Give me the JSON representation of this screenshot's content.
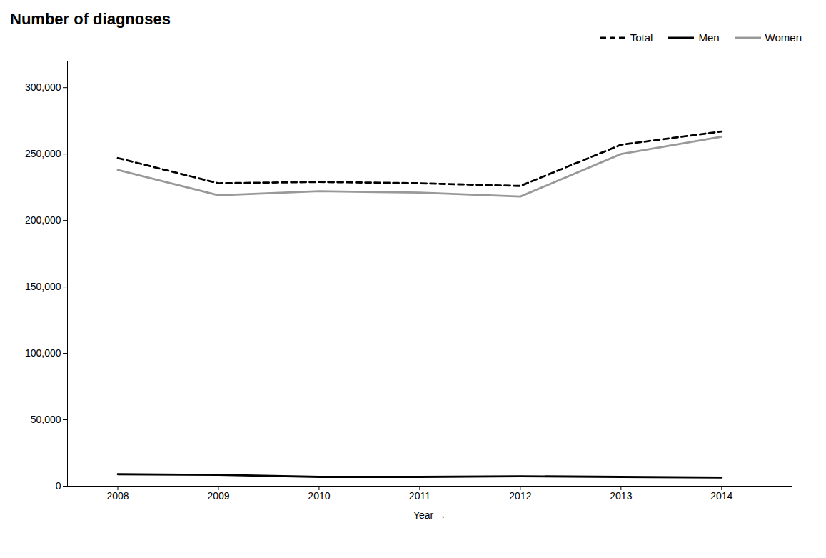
{
  "chart_data": {
    "type": "line",
    "title": "Number of diagnoses",
    "x_label": "Year",
    "x": [
      2008,
      2009,
      2010,
      2011,
      2012,
      2013,
      2014
    ],
    "series": [
      {
        "name": "Total",
        "color": "#000000",
        "line_style": "dashed",
        "values": [
          247000,
          228000,
          229000,
          228000,
          226000,
          257000,
          267000
        ]
      },
      {
        "name": "Men",
        "color": "#000000",
        "line_style": "solid",
        "values": [
          9000,
          8500,
          7000,
          7000,
          7500,
          7000,
          6500
        ]
      },
      {
        "name": "Women",
        "color": "#999999",
        "line_style": "solid",
        "values": [
          238000,
          219000,
          222000,
          221000,
          218000,
          250000,
          263000
        ]
      }
    ],
    "xlim": [
      2007.5,
      2014.7
    ],
    "xticks": [
      2008,
      2009,
      2010,
      2011,
      2012,
      2013,
      2014
    ],
    "ylim": [
      0,
      320000
    ],
    "yticks": [
      0,
      {
        "value": 50000,
        "label": "50,000"
      },
      {
        "value": 100000,
        "label": "100,000"
      },
      {
        "value": 150000,
        "label": "150,000"
      },
      {
        "value": 200000,
        "label": "200,000"
      },
      {
        "value": 250000,
        "label": "250,000"
      },
      {
        "value": 300000,
        "label": "300,000"
      }
    ],
    "grid": false,
    "legend": "upper right"
  }
}
